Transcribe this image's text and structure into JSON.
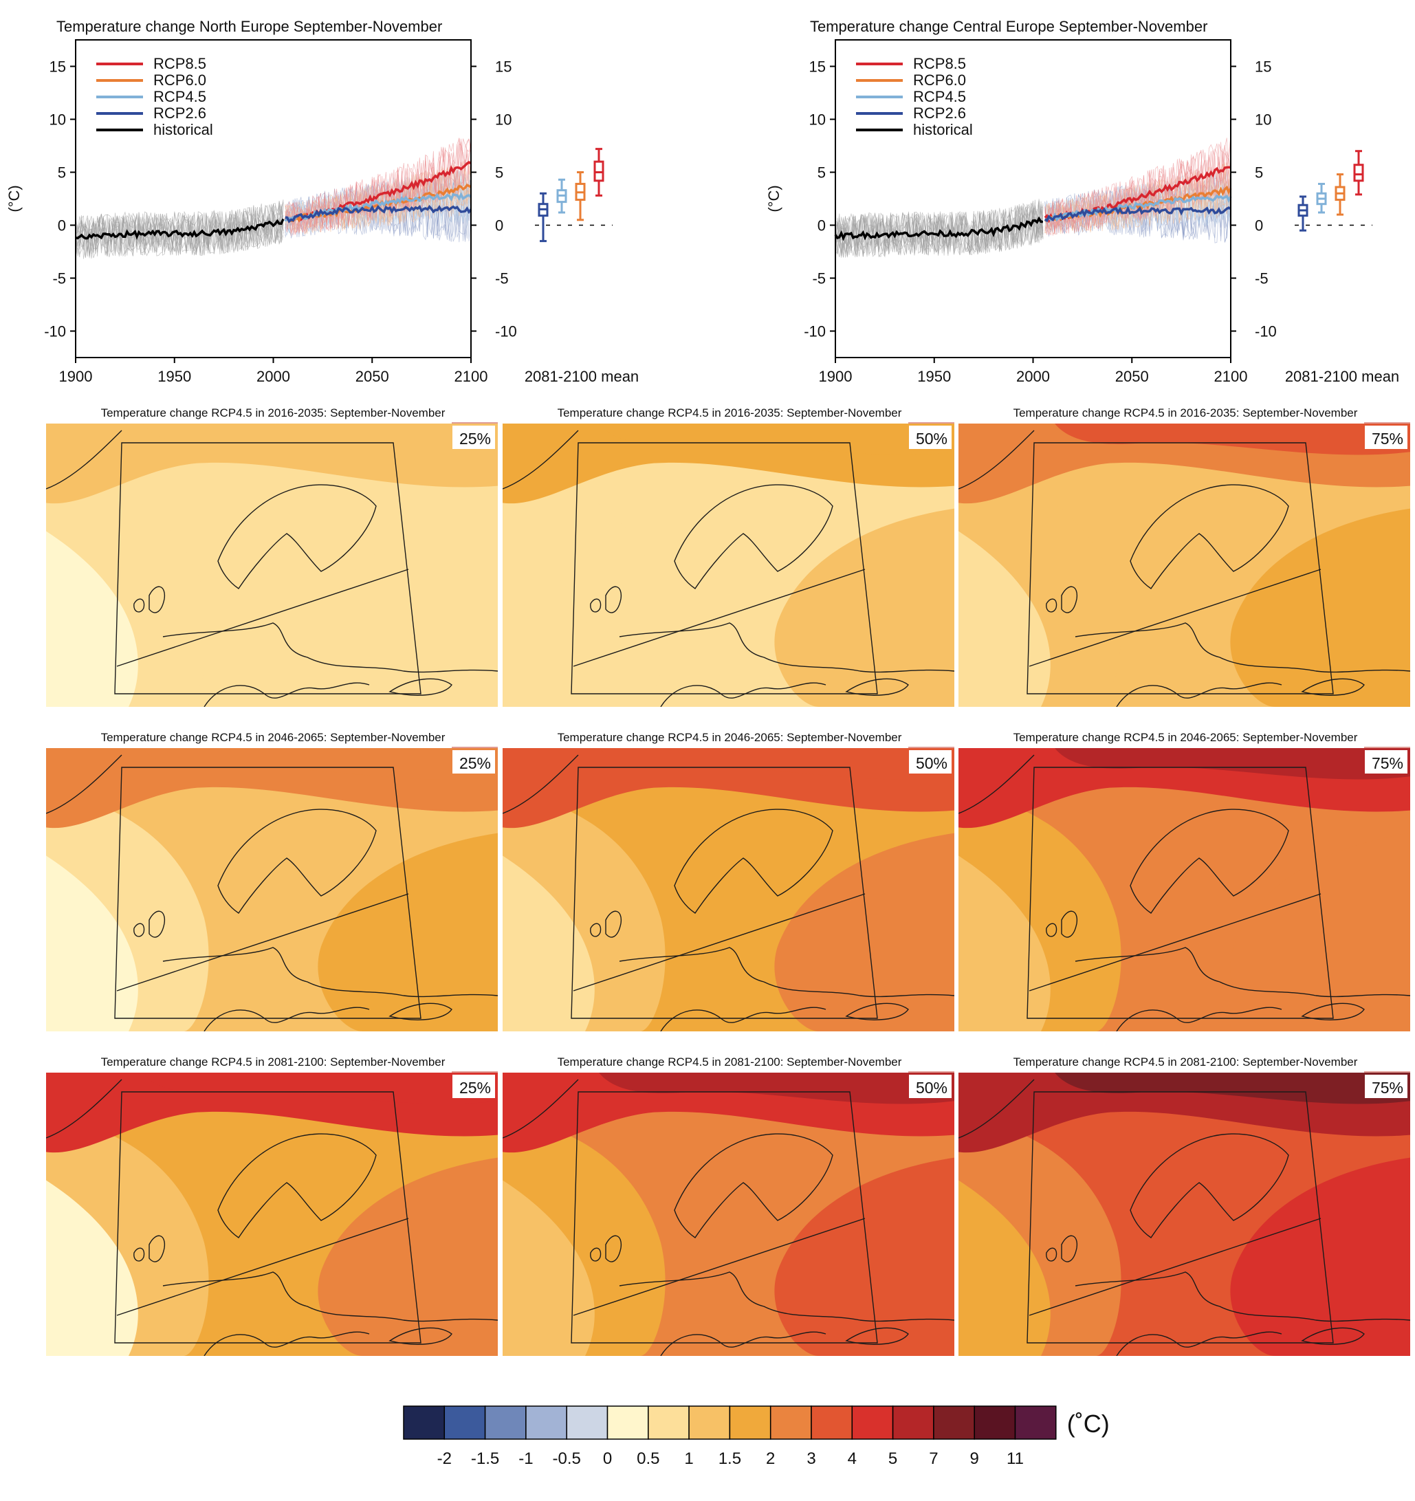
{
  "chart_data": [
    {
      "type": "line",
      "title": "Temperature change North Europe September-November",
      "ylabel": "(°C)",
      "xlim": [
        1900,
        2100
      ],
      "ylim": [
        -12.5,
        17.5
      ],
      "xticks": [
        1900,
        1950,
        2000,
        2050,
        2100
      ],
      "yticks": [
        -10,
        -5,
        0,
        5,
        10,
        15
      ],
      "legend_placement": "top-left",
      "box_label": "2081-2100 mean",
      "series": [
        {
          "name": "RCP8.5",
          "color": "#d7262f",
          "x": [
            2006,
            2020,
            2035,
            2050,
            2065,
            2080,
            2100
          ],
          "values": [
            0.5,
            1.0,
            1.7,
            2.5,
            3.4,
            4.4,
            5.9
          ]
        },
        {
          "name": "RCP6.0",
          "color": "#e97e34",
          "x": [
            2006,
            2020,
            2035,
            2050,
            2065,
            2080,
            2100
          ],
          "values": [
            0.5,
            0.9,
            1.3,
            1.8,
            2.3,
            2.9,
            3.7
          ]
        },
        {
          "name": "RCP4.5",
          "color": "#80b1d8",
          "x": [
            2006,
            2020,
            2035,
            2050,
            2065,
            2080,
            2100
          ],
          "values": [
            0.5,
            1.0,
            1.5,
            2.0,
            2.4,
            2.6,
            2.8
          ]
        },
        {
          "name": "RCP2.6",
          "color": "#2f4b9a",
          "x": [
            2006,
            2020,
            2035,
            2050,
            2065,
            2080,
            2100
          ],
          "values": [
            0.5,
            1.0,
            1.4,
            1.5,
            1.5,
            1.5,
            1.5
          ]
        },
        {
          "name": "historical",
          "color": "#000000",
          "x": [
            1900,
            1920,
            1940,
            1960,
            1980,
            1995,
            2005
          ],
          "values": [
            -1.2,
            -0.9,
            -0.8,
            -0.8,
            -0.6,
            0.0,
            0.4
          ]
        }
      ],
      "boxes": [
        {
          "name": "RCP2.6",
          "color": "#2f4b9a",
          "min": -1.5,
          "q1": 0.9,
          "median": 1.5,
          "q3": 2.0,
          "max": 3.0
        },
        {
          "name": "RCP4.5",
          "color": "#80b1d8",
          "min": 1.2,
          "q1": 2.2,
          "median": 2.8,
          "q3": 3.3,
          "max": 4.3
        },
        {
          "name": "RCP6.0",
          "color": "#e97e34",
          "min": 0.5,
          "q1": 2.4,
          "median": 3.1,
          "q3": 3.9,
          "max": 5.0
        },
        {
          "name": "RCP8.5",
          "color": "#d7262f",
          "min": 2.8,
          "q1": 4.2,
          "median": 5.0,
          "q3": 6.0,
          "max": 7.2
        }
      ]
    },
    {
      "type": "line",
      "title": "Temperature change Central Europe September-November",
      "ylabel": "(°C)",
      "xlim": [
        1900,
        2100
      ],
      "ylim": [
        -12.5,
        17.5
      ],
      "xticks": [
        1900,
        1950,
        2000,
        2050,
        2100
      ],
      "yticks": [
        -10,
        -5,
        0,
        5,
        10,
        15
      ],
      "legend_placement": "top-left",
      "box_label": "2081-2100 mean",
      "series": [
        {
          "name": "RCP8.5",
          "color": "#d7262f",
          "x": [
            2006,
            2020,
            2035,
            2050,
            2065,
            2080,
            2100
          ],
          "values": [
            0.6,
            1.0,
            1.6,
            2.4,
            3.3,
            4.2,
            5.6
          ]
        },
        {
          "name": "RCP6.0",
          "color": "#e97e34",
          "x": [
            2006,
            2020,
            2035,
            2050,
            2065,
            2080,
            2100
          ],
          "values": [
            0.6,
            0.9,
            1.2,
            1.7,
            2.2,
            2.7,
            3.4
          ]
        },
        {
          "name": "RCP4.5",
          "color": "#80b1d8",
          "x": [
            2006,
            2020,
            2035,
            2050,
            2065,
            2080,
            2100
          ],
          "values": [
            0.6,
            1.0,
            1.4,
            1.8,
            2.2,
            2.4,
            2.6
          ]
        },
        {
          "name": "RCP2.6",
          "color": "#2f4b9a",
          "x": [
            2006,
            2020,
            2035,
            2050,
            2065,
            2080,
            2100
          ],
          "values": [
            0.6,
            1.0,
            1.3,
            1.4,
            1.4,
            1.4,
            1.4
          ]
        },
        {
          "name": "historical",
          "color": "#000000",
          "x": [
            1900,
            1920,
            1940,
            1960,
            1980,
            1995,
            2005
          ],
          "values": [
            -1.0,
            -0.9,
            -0.8,
            -0.8,
            -0.6,
            0.0,
            0.5
          ]
        }
      ],
      "boxes": [
        {
          "name": "RCP2.6",
          "color": "#2f4b9a",
          "min": -0.5,
          "q1": 0.9,
          "median": 1.4,
          "q3": 1.9,
          "max": 2.7
        },
        {
          "name": "RCP4.5",
          "color": "#80b1d8",
          "min": 1.2,
          "q1": 2.0,
          "median": 2.5,
          "q3": 3.0,
          "max": 3.9
        },
        {
          "name": "RCP6.0",
          "color": "#e97e34",
          "min": 1.0,
          "q1": 2.4,
          "median": 3.0,
          "q3": 3.6,
          "max": 4.8
        },
        {
          "name": "RCP8.5",
          "color": "#d7262f",
          "min": 2.9,
          "q1": 4.2,
          "median": 4.8,
          "q3": 5.7,
          "max": 7.0
        }
      ]
    },
    {
      "type": "heatmap",
      "maps": [
        {
          "title": "Temperature change RCP4.5 in 2016-2035: September-November",
          "percentile": "25%"
        },
        {
          "title": "Temperature change RCP4.5 in 2016-2035: September-November",
          "percentile": "50%"
        },
        {
          "title": "Temperature change RCP4.5 in 2016-2035: September-November",
          "percentile": "75%"
        },
        {
          "title": "Temperature change RCP4.5 in 2046-2065: September-November",
          "percentile": "25%"
        },
        {
          "title": "Temperature change RCP4.5 in 2046-2065: September-November",
          "percentile": "50%"
        },
        {
          "title": "Temperature change RCP4.5 in 2046-2065: September-November",
          "percentile": "75%"
        },
        {
          "title": "Temperature change RCP4.5 in 2081-2100: September-November",
          "percentile": "25%"
        },
        {
          "title": "Temperature change RCP4.5 in 2081-2100: September-November",
          "percentile": "50%"
        },
        {
          "title": "Temperature change RCP4.5 in 2081-2100: September-November",
          "percentile": "75%"
        }
      ],
      "colorbar": {
        "unit": "(˚C)",
        "ticks": [
          "-2",
          "-1.5",
          "-1",
          "-0.5",
          "0",
          "0.5",
          "1",
          "1.5",
          "2",
          "3",
          "4",
          "5",
          "7",
          "9",
          "11"
        ],
        "colors": [
          "#1e2752",
          "#3c5a9c",
          "#6f87b9",
          "#a2b3d5",
          "#cdd6e5",
          "#fff6cc",
          "#fddf9a",
          "#f7c166",
          "#f0a93b",
          "#ea843f",
          "#e25631",
          "#d9312c",
          "#b42628",
          "#7e1f24",
          "#5a1322",
          "#5a1a3f"
        ]
      }
    }
  ]
}
